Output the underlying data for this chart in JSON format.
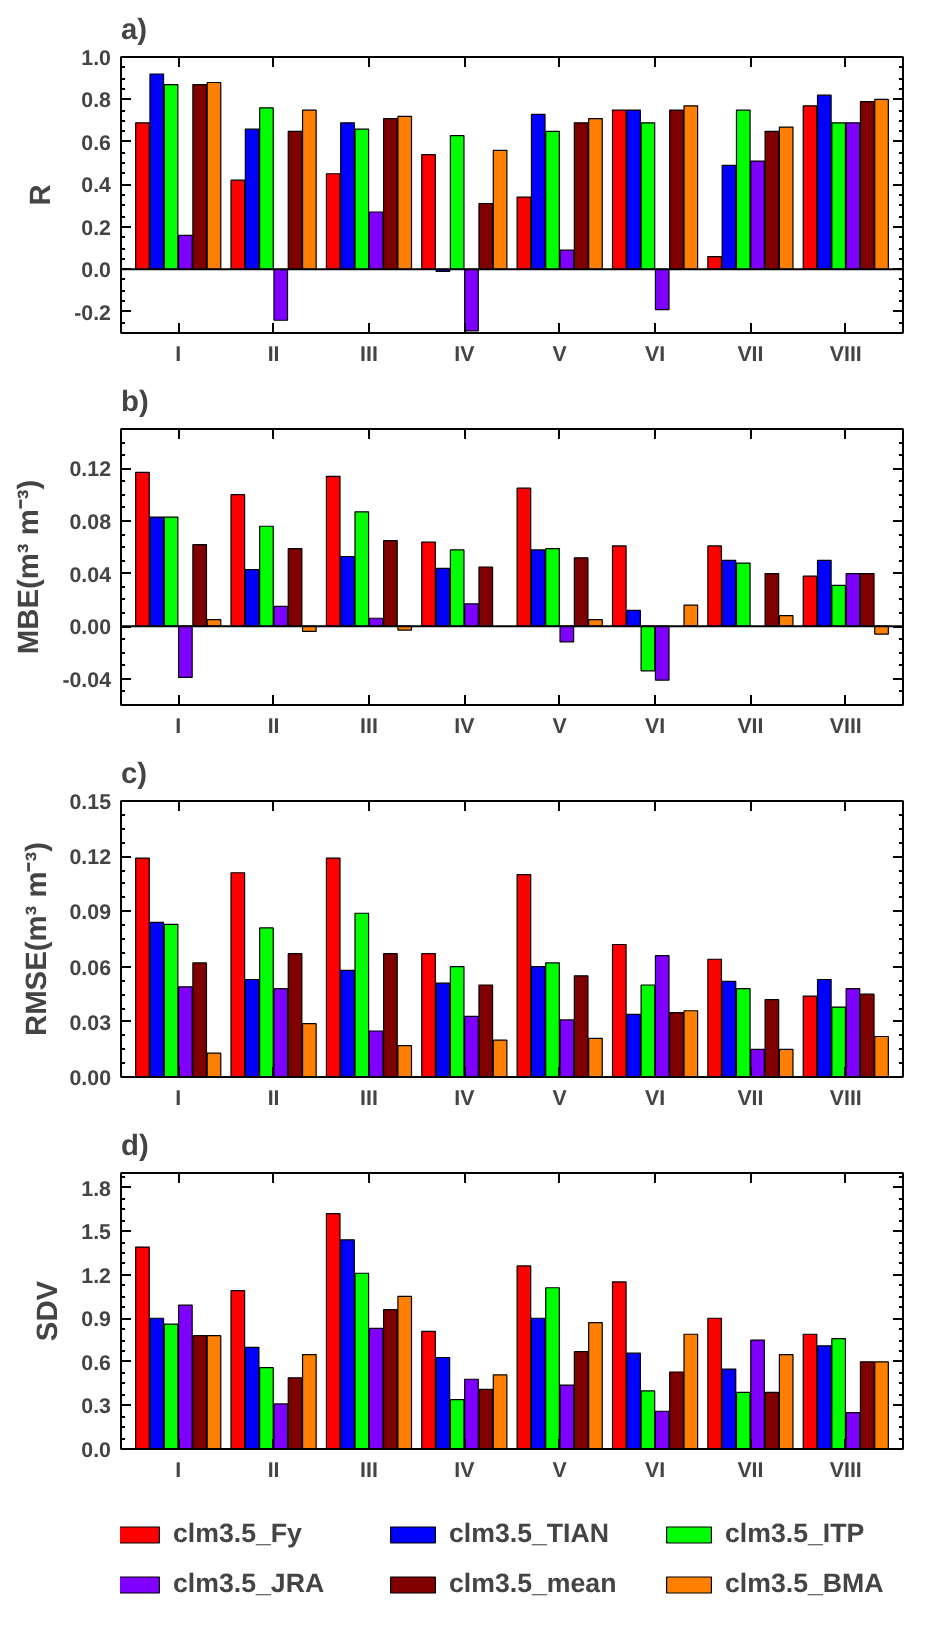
{
  "chart_data": [
    {
      "type": "bar",
      "title": "a)",
      "ylabel": "R",
      "ref_lines": [
        {
          "axis": "y",
          "value": 0
        }
      ],
      "categories": [
        "I",
        "II",
        "III",
        "IV",
        "V",
        "VI",
        "VII",
        "VIII"
      ],
      "ylim": [
        -0.3,
        1.0
      ],
      "yticks": [
        {
          "value": -0.2,
          "label": "-0.2"
        },
        {
          "value": 0,
          "label": "0.0"
        },
        {
          "value": 0.2,
          "label": "0.2"
        },
        {
          "value": 0.4,
          "label": "0.4"
        },
        {
          "value": 0.6,
          "label": "0.6"
        },
        {
          "value": 0.8,
          "label": "0.8"
        },
        {
          "value": 1.0,
          "label": "1.0"
        }
      ],
      "grid": false,
      "series": [
        {
          "color": "#ff0000",
          "values": [
            0.69,
            0.42,
            0.45,
            0.54,
            0.34,
            0.75,
            0.06,
            0.77
          ]
        },
        {
          "color": "#0000ff",
          "values": [
            0.92,
            0.66,
            0.69,
            -0.01,
            0.73,
            0.75,
            0.49,
            0.82
          ]
        },
        {
          "color": "#00ff00",
          "values": [
            0.87,
            0.76,
            0.66,
            0.63,
            0.65,
            0.69,
            0.75,
            0.69
          ]
        },
        {
          "color": "#8000ff",
          "values": [
            0.16,
            -0.24,
            0.27,
            -0.29,
            0.09,
            -0.19,
            0.51,
            0.69
          ]
        },
        {
          "color": "#800000",
          "values": [
            0.87,
            0.65,
            0.71,
            0.31,
            0.69,
            0.75,
            0.65,
            0.79
          ]
        },
        {
          "color": "#ff8000",
          "values": [
            0.88,
            0.75,
            0.72,
            0.56,
            0.71,
            0.77,
            0.67,
            0.8
          ]
        }
      ]
    },
    {
      "type": "bar",
      "title": "b)",
      "ylabel": "MBE(m³ m⁻³)",
      "ref_lines": [
        {
          "axis": "y",
          "value": 0
        }
      ],
      "categories": [
        "I",
        "II",
        "III",
        "IV",
        "V",
        "VI",
        "VII",
        "VIII"
      ],
      "ylim": [
        -0.06,
        0.15
      ],
      "yticks": [
        {
          "value": -0.04,
          "label": "-0.04"
        },
        {
          "value": 0,
          "label": "0.00"
        },
        {
          "value": 0.04,
          "label": "0.04"
        },
        {
          "value": 0.08,
          "label": "0.08"
        },
        {
          "value": 0.12,
          "label": "0.12"
        }
      ],
      "grid": false,
      "series": [
        {
          "color": "#ff0000",
          "values": [
            0.117,
            0.1,
            0.114,
            0.064,
            0.105,
            0.061,
            0.061,
            0.038
          ]
        },
        {
          "color": "#0000ff",
          "values": [
            0.083,
            0.043,
            0.053,
            0.044,
            0.058,
            0.012,
            0.05,
            0.05
          ]
        },
        {
          "color": "#00ff00",
          "values": [
            0.083,
            0.076,
            0.087,
            0.058,
            0.059,
            -0.034,
            0.048,
            0.031
          ]
        },
        {
          "color": "#8000ff",
          "values": [
            -0.039,
            0.015,
            0.006,
            0.017,
            -0.012,
            -0.041,
            null,
            0.04
          ]
        },
        {
          "color": "#800000",
          "values": [
            0.062,
            0.059,
            0.065,
            0.045,
            0.052,
            null,
            0.04,
            0.04
          ]
        },
        {
          "color": "#ff8000",
          "values": [
            0.005,
            -0.004,
            -0.003,
            null,
            0.005,
            0.016,
            0.008,
            -0.006
          ]
        }
      ]
    },
    {
      "type": "bar",
      "title": "c)",
      "ylabel": "RMSE(m³ m⁻³)",
      "categories": [
        "I",
        "II",
        "III",
        "IV",
        "V",
        "VI",
        "VII",
        "VIII"
      ],
      "ylim": [
        0,
        0.15
      ],
      "yticks": [
        {
          "value": 0,
          "label": "0.00"
        },
        {
          "value": 0.03,
          "label": "0.03"
        },
        {
          "value": 0.06,
          "label": "0.06"
        },
        {
          "value": 0.09,
          "label": "0.09"
        },
        {
          "value": 0.12,
          "label": "0.12"
        },
        {
          "value": 0.15,
          "label": "0.15"
        }
      ],
      "grid": false,
      "series": [
        {
          "color": "#ff0000",
          "values": [
            0.119,
            0.111,
            0.119,
            0.067,
            0.11,
            0.072,
            0.064,
            0.044
          ]
        },
        {
          "color": "#0000ff",
          "values": [
            0.084,
            0.053,
            0.058,
            0.051,
            0.06,
            0.034,
            0.052,
            0.053
          ]
        },
        {
          "color": "#00ff00",
          "values": [
            0.083,
            0.081,
            0.089,
            0.06,
            0.062,
            0.05,
            0.048,
            0.038
          ]
        },
        {
          "color": "#8000ff",
          "values": [
            0.049,
            0.048,
            0.025,
            0.033,
            0.031,
            0.066,
            0.015,
            0.048
          ]
        },
        {
          "color": "#800000",
          "values": [
            0.062,
            0.067,
            0.067,
            0.05,
            0.055,
            0.035,
            0.042,
            0.045
          ]
        },
        {
          "color": "#ff8000",
          "values": [
            0.013,
            0.029,
            0.017,
            0.02,
            0.021,
            0.036,
            0.015,
            0.022
          ]
        }
      ]
    },
    {
      "type": "bar",
      "title": "d)",
      "ylabel": "SDV",
      "categories": [
        "I",
        "II",
        "III",
        "IV",
        "V",
        "VI",
        "VII",
        "VIII"
      ],
      "ylim": [
        0,
        1.9
      ],
      "yticks": [
        {
          "value": 0,
          "label": "0.0"
        },
        {
          "value": 0.3,
          "label": "0.3"
        },
        {
          "value": 0.6,
          "label": "0.6"
        },
        {
          "value": 0.9,
          "label": "0.9"
        },
        {
          "value": 1.2,
          "label": "1.2"
        },
        {
          "value": 1.5,
          "label": "1.5"
        },
        {
          "value": 1.8,
          "label": "1.8"
        }
      ],
      "grid": false,
      "legend": "bottom",
      "series": [
        {
          "name": "clm3.5_Fy",
          "color": "#ff0000",
          "values": [
            1.39,
            1.09,
            1.62,
            0.81,
            1.26,
            1.15,
            0.9,
            0.79
          ]
        },
        {
          "name": "clm3.5_TIAN",
          "color": "#0000ff",
          "values": [
            0.9,
            0.7,
            1.44,
            0.63,
            0.9,
            0.66,
            0.55,
            0.71
          ]
        },
        {
          "name": "clm3.5_ITP",
          "color": "#00ff00",
          "values": [
            0.86,
            0.56,
            1.21,
            0.34,
            1.11,
            0.4,
            0.39,
            0.76
          ]
        },
        {
          "name": "clm3.5_JRA",
          "color": "#8000ff",
          "values": [
            0.99,
            0.31,
            0.83,
            0.48,
            0.44,
            0.26,
            0.75,
            0.25
          ]
        },
        {
          "name": "clm3.5_mean",
          "color": "#800000",
          "values": [
            0.78,
            0.49,
            0.96,
            0.41,
            0.67,
            0.53,
            0.39,
            0.6
          ]
        },
        {
          "name": "clm3.5_BMA",
          "color": "#ff8000",
          "values": [
            0.78,
            0.65,
            1.05,
            0.51,
            0.87,
            0.79,
            0.65,
            0.6
          ]
        }
      ]
    }
  ]
}
